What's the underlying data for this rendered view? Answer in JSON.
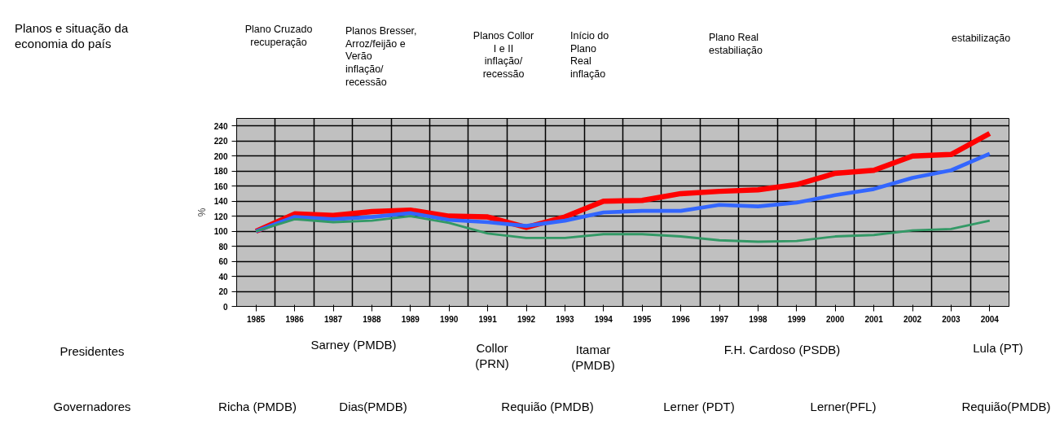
{
  "chart_data": {
    "type": "line",
    "ylabel": "%",
    "categories": [
      "1985",
      "1986",
      "1987",
      "1988",
      "1989",
      "1990",
      "1991",
      "1992",
      "1993",
      "1994",
      "1995",
      "1996",
      "1997",
      "1998",
      "1999",
      "2000",
      "2001",
      "2002",
      "2003",
      "2004"
    ],
    "series": [
      {
        "color": "#ff0000",
        "values": [
          100,
          123,
          121,
          126,
          128,
          120,
          119,
          105,
          119,
          140,
          141,
          150,
          153,
          155,
          162,
          177,
          181,
          200,
          202,
          230
        ]
      },
      {
        "color": "#3366ff",
        "values": [
          100,
          119,
          116,
          119,
          124,
          115,
          112,
          107,
          114,
          125,
          127,
          127,
          135,
          133,
          138,
          148,
          156,
          171,
          181,
          203
        ]
      },
      {
        "color": "#339966",
        "values": [
          100,
          116,
          112,
          114,
          120,
          111,
          97,
          91,
          91,
          96,
          96,
          93,
          88,
          86,
          87,
          93,
          95,
          101,
          103,
          114
        ]
      }
    ],
    "ylim": [
      0,
      250
    ],
    "yticks": [
      0,
      20,
      40,
      60,
      80,
      100,
      120,
      140,
      160,
      180,
      200,
      220,
      240
    ],
    "grid": true,
    "marker": "none",
    "line_style": "solid",
    "annotations": [
      "Planos e situação da\neconomia do país",
      "Plano Cruzado\nrecuperação",
      "Planos Bresser,\nArroz/feijão e\nVerão\ninflação/\nrecessão",
      "Planos Collor\nI e II\ninflação/\nrecessão",
      "Início do\nPlano\nReal\ninflação",
      "Plano Real\nestabiliação",
      "estabilização",
      "Presidentes",
      "Sarney (PMDB)",
      "Collor\n(PRN)",
      "Itamar\n(PMDB)",
      "F.H. Cardoso (PSDB)",
      "Lula (PT)",
      "Governadores",
      "Richa (PMDB)",
      "Dias(PMDB)",
      "Requião (PMDB)",
      "Lerner (PDT)",
      "Lerner(PFL)",
      "Requião(PMDB)"
    ]
  }
}
